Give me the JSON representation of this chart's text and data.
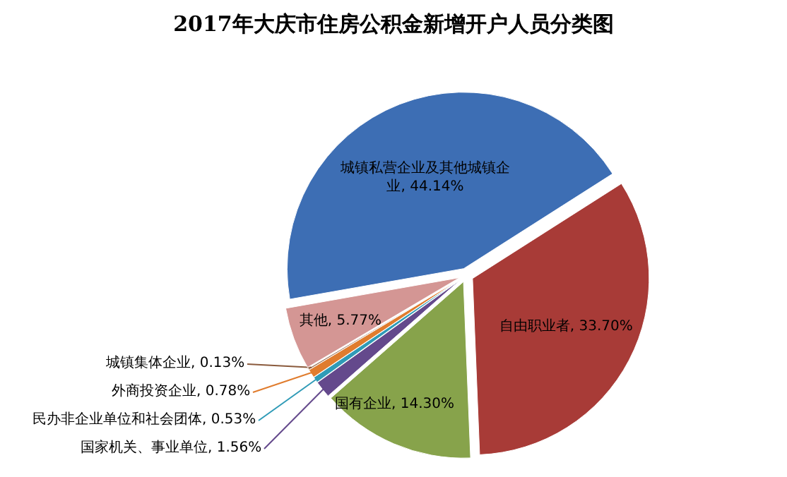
{
  "chart_data": {
    "type": "pie",
    "title": "2017年大庆市住房公积金新增开户人员分类图",
    "categories": [
      "城镇私营企业及其他城镇企业",
      "自由职业者",
      "国有企业",
      "国家机关、事业单位",
      "民办非企业单位和社会团体",
      "外商投资企业",
      "城镇集体企业",
      "其他"
    ],
    "values": [
      44.14,
      33.7,
      14.3,
      1.56,
      0.53,
      0.78,
      0.13,
      5.77
    ],
    "value_labels": [
      "44.14%",
      "33.70%",
      "14.30%",
      "1.56%",
      "0.53%",
      "0.78%",
      "0.13%",
      "5.77%"
    ],
    "colors": [
      "#3d6eb4",
      "#a83b37",
      "#87a34b",
      "#64498c",
      "#2f9bb7",
      "#e07c2e",
      "#8a5a3c",
      "#d49694"
    ]
  }
}
